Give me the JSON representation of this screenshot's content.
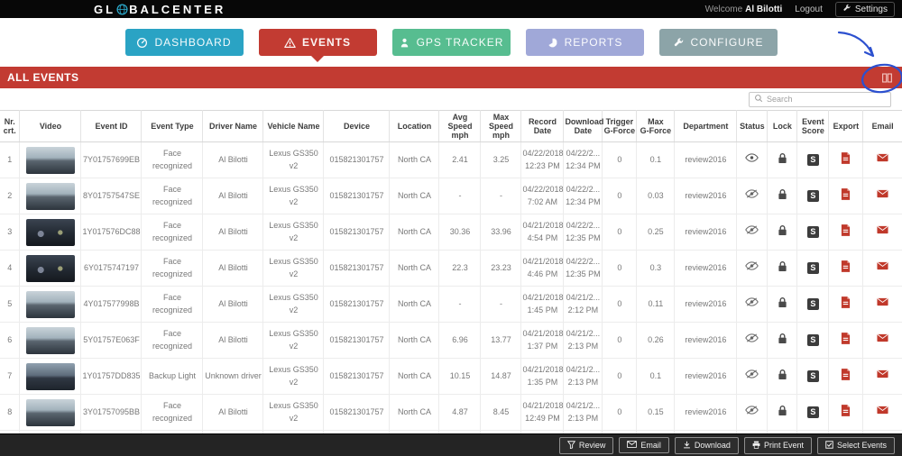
{
  "topbar": {
    "brand": {
      "prefix": "GL",
      "suffix": "BALCENTER",
      "globe_icon": "globe-icon"
    },
    "welcome_label": "Welcome",
    "username": "Al Bilotti",
    "logout_label": "Logout",
    "settings_label": "Settings",
    "settings_icon": "wrench-icon"
  },
  "nav": {
    "tabs": [
      {
        "label": "DASHBOARD",
        "icon": "gauge-icon",
        "color": "#2aa3c4",
        "active": false
      },
      {
        "label": "EVENTS",
        "icon": "warning-icon",
        "color": "#c23b32",
        "active": true
      },
      {
        "label": "GPS TRACKER",
        "icon": "person-icon",
        "color": "#57bd90",
        "active": false
      },
      {
        "label": "REPORTS",
        "icon": "pie-chart-icon",
        "color": "#a0a8d8",
        "active": false
      },
      {
        "label": "CONFIGURE",
        "icon": "wrench-icon",
        "color": "#8ca4a8",
        "active": false
      }
    ]
  },
  "section_bar": {
    "title": "ALL EVENTS",
    "icon": "columns-icon",
    "color": "#c23b32"
  },
  "search": {
    "placeholder": "Search",
    "icon": "search-icon"
  },
  "table": {
    "score_glyph": "S",
    "columns": [
      {
        "key": "nr",
        "label": "Nr.\ncrt."
      },
      {
        "key": "video",
        "label": "Video"
      },
      {
        "key": "event_id",
        "label": "Event ID"
      },
      {
        "key": "event_type",
        "label": "Event Type"
      },
      {
        "key": "driver",
        "label": "Driver Name"
      },
      {
        "key": "vehicle",
        "label": "Vehicle Name"
      },
      {
        "key": "device",
        "label": "Device"
      },
      {
        "key": "location",
        "label": "Location"
      },
      {
        "key": "avg_speed",
        "label": "Avg Speed\nmph"
      },
      {
        "key": "max_speed",
        "label": "Max Speed\nmph"
      },
      {
        "key": "record_date",
        "label": "Record Date"
      },
      {
        "key": "download_date",
        "label": "Download\nDate"
      },
      {
        "key": "trigger_g",
        "label": "Trigger\nG-Force"
      },
      {
        "key": "max_g",
        "label": "Max\nG-Force"
      },
      {
        "key": "department",
        "label": "Department"
      },
      {
        "key": "status",
        "label": "Status"
      },
      {
        "key": "lock",
        "label": "Lock"
      },
      {
        "key": "score",
        "label": "Event\nScore"
      },
      {
        "key": "export",
        "label": "Export"
      },
      {
        "key": "email",
        "label": "Email"
      }
    ],
    "rows": [
      {
        "nr": "1",
        "thumb": "day",
        "event_id": "7Y01757699EB",
        "event_type": "Face recognized",
        "driver": "Al Bilotti",
        "vehicle": "Lexus GS350 v2",
        "device": "015821301757",
        "location": "North CA",
        "avg_speed": "2.41",
        "max_speed": "3.25",
        "record_date": "04/22/2018\n12:23 PM",
        "download_date": "04/22/2...\n12:34 PM",
        "trigger_g": "0",
        "max_g": "0.1",
        "department": "review2016",
        "status": "visible"
      },
      {
        "nr": "2",
        "thumb": "day",
        "event_id": "8Y01757547SE",
        "event_type": "Face recognized",
        "driver": "Al Bilotti",
        "vehicle": "Lexus GS350 v2",
        "device": "015821301757",
        "location": "North CA",
        "avg_speed": "-",
        "max_speed": "-",
        "record_date": "04/22/2018\n7:02 AM",
        "download_date": "04/22/2...\n12:34 PM",
        "trigger_g": "0",
        "max_g": "0.03",
        "department": "review2016",
        "status": "hidden"
      },
      {
        "nr": "3",
        "thumb": "night",
        "event_id": "1Y017576DC88",
        "event_type": "Face recognized",
        "driver": "Al Bilotti",
        "vehicle": "Lexus GS350 v2",
        "device": "015821301757",
        "location": "North CA",
        "avg_speed": "30.36",
        "max_speed": "33.96",
        "record_date": "04/21/2018\n4:54 PM",
        "download_date": "04/22/2...\n12:35 PM",
        "trigger_g": "0",
        "max_g": "0.25",
        "department": "review2016",
        "status": "hidden"
      },
      {
        "nr": "4",
        "thumb": "night",
        "event_id": "6Y0175747197",
        "event_type": "Face recognized",
        "driver": "Al Bilotti",
        "vehicle": "Lexus GS350 v2",
        "device": "015821301757",
        "location": "North CA",
        "avg_speed": "22.3",
        "max_speed": "23.23",
        "record_date": "04/21/2018\n4:46 PM",
        "download_date": "04/22/2...\n12:35 PM",
        "trigger_g": "0",
        "max_g": "0.3",
        "department": "review2016",
        "status": "hidden"
      },
      {
        "nr": "5",
        "thumb": "day",
        "event_id": "4Y017577998B",
        "event_type": "Face recognized",
        "driver": "Al Bilotti",
        "vehicle": "Lexus GS350 v2",
        "device": "015821301757",
        "location": "North CA",
        "avg_speed": "-",
        "max_speed": "-",
        "record_date": "04/21/2018\n1:45 PM",
        "download_date": "04/21/2...\n2:12 PM",
        "trigger_g": "0",
        "max_g": "0.11",
        "department": "review2016",
        "status": "hidden"
      },
      {
        "nr": "6",
        "thumb": "day",
        "event_id": "5Y01757E063F",
        "event_type": "Face recognized",
        "driver": "Al Bilotti",
        "vehicle": "Lexus GS350 v2",
        "device": "015821301757",
        "location": "North CA",
        "avg_speed": "6.96",
        "max_speed": "13.77",
        "record_date": "04/21/2018\n1:37 PM",
        "download_date": "04/21/2...\n2:13 PM",
        "trigger_g": "0",
        "max_g": "0.26",
        "department": "review2016",
        "status": "hidden"
      },
      {
        "nr": "7",
        "thumb": "dusk",
        "event_id": "1Y01757DD835",
        "event_type": "Backup Light",
        "driver": "Unknown driver",
        "vehicle": "Lexus GS350 v2",
        "device": "015821301757",
        "location": "North CA",
        "avg_speed": "10.15",
        "max_speed": "14.87",
        "record_date": "04/21/2018\n1:35 PM",
        "download_date": "04/21/2...\n2:13 PM",
        "trigger_g": "0",
        "max_g": "0.1",
        "department": "review2016",
        "status": "hidden"
      },
      {
        "nr": "8",
        "thumb": "day",
        "event_id": "3Y01757095BB",
        "event_type": "Face recognized",
        "driver": "Al Bilotti",
        "vehicle": "Lexus GS350 v2",
        "device": "015821301757",
        "location": "North CA",
        "avg_speed": "4.87",
        "max_speed": "8.45",
        "record_date": "04/21/2018\n12:49 PM",
        "download_date": "04/21/2...\n2:13 PM",
        "trigger_g": "0",
        "max_g": "0.15",
        "department": "review2016",
        "status": "hidden"
      },
      {
        "nr": "",
        "thumb": "day",
        "event_id": "",
        "event_type": "",
        "driver": "",
        "vehicle": "",
        "device": "",
        "location": "",
        "avg_speed": "",
        "max_speed": "",
        "record_date": "",
        "download_date": "",
        "trigger_g": "",
        "max_g": "",
        "department": "",
        "status": "hidden",
        "partial": true
      }
    ]
  },
  "footer": {
    "buttons": [
      {
        "label": "Review",
        "icon": "filter-icon"
      },
      {
        "label": "Email",
        "icon": "envelope-icon"
      },
      {
        "label": "Download",
        "icon": "download-icon"
      },
      {
        "label": "Print Event",
        "icon": "printer-icon"
      },
      {
        "label": "Select Events",
        "icon": "checkbox-icon"
      }
    ]
  },
  "annotation": {
    "color": "#2c50cf",
    "description": "hand-drawn arrow and circle highlighting the columns icon in the ALL EVENTS bar"
  }
}
